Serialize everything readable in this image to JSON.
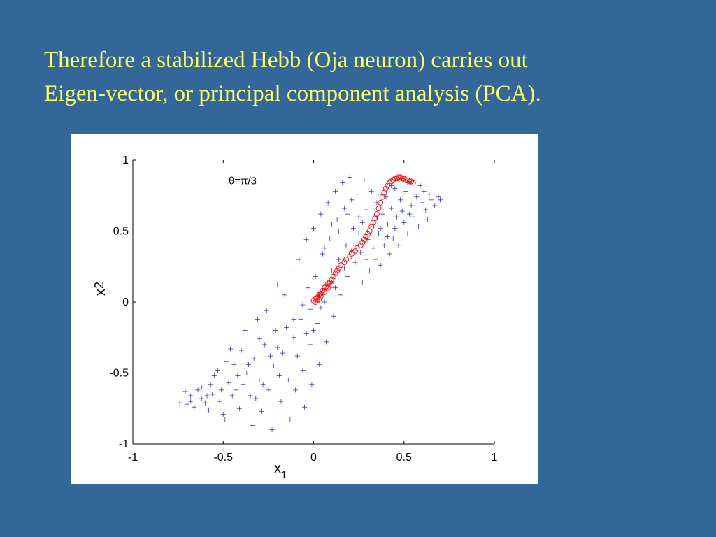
{
  "slide": {
    "title_line1": "Therefore a stabilized Hebb (Oja neuron) carries out",
    "title_line2": "Eigen-vector, or principal component analysis (PCA).",
    "title_color": "#ffff66",
    "background_color": "#336699"
  },
  "chart_data": {
    "type": "scatter",
    "xlabel_main": "x",
    "xlabel_sub": "1",
    "ylabel_main": "x",
    "ylabel_sub": "2",
    "xlim": [
      -1,
      1
    ],
    "ylim": [
      -1,
      1
    ],
    "xticks": [
      -1,
      -0.5,
      0,
      0.5,
      1
    ],
    "yticks": [
      -1,
      -0.5,
      0,
      0.5,
      1
    ],
    "xtick_labels": [
      "-1",
      "-0.5",
      "0",
      "0.5",
      "1"
    ],
    "ytick_labels": [
      "-1",
      "-0.5",
      "0",
      "0.5",
      "1"
    ],
    "annotation": "θ=π/3",
    "annotation_at": [
      -0.47,
      0.83
    ],
    "grid": false,
    "series": [
      {
        "marker": "plus",
        "color": "#3333cc",
        "points": [
          [
            -0.74,
            -0.71
          ],
          [
            -0.7,
            -0.72
          ],
          [
            -0.68,
            -0.7
          ],
          [
            -0.66,
            -0.74
          ],
          [
            -0.64,
            -0.62
          ],
          [
            -0.62,
            -0.6
          ],
          [
            -0.6,
            -0.71
          ],
          [
            -0.58,
            -0.76
          ],
          [
            -0.56,
            -0.65
          ],
          [
            -0.55,
            -0.52
          ],
          [
            -0.53,
            -0.48
          ],
          [
            -0.52,
            -0.7
          ],
          [
            -0.5,
            -0.79
          ],
          [
            -0.49,
            -0.83
          ],
          [
            -0.47,
            -0.57
          ],
          [
            -0.46,
            -0.33
          ],
          [
            -0.44,
            -0.44
          ],
          [
            -0.43,
            -0.62
          ],
          [
            -0.41,
            -0.75
          ],
          [
            -0.4,
            -0.34
          ],
          [
            -0.38,
            -0.2
          ],
          [
            -0.37,
            -0.5
          ],
          [
            -0.35,
            -0.66
          ],
          [
            -0.34,
            -0.87
          ],
          [
            -0.33,
            -0.4
          ],
          [
            -0.31,
            -0.12
          ],
          [
            -0.3,
            -0.55
          ],
          [
            -0.29,
            -0.77
          ],
          [
            -0.27,
            -0.3
          ],
          [
            -0.26,
            -0.06
          ],
          [
            -0.25,
            -0.62
          ],
          [
            -0.23,
            -0.9
          ],
          [
            -0.22,
            -0.45
          ],
          [
            -0.21,
            -0.2
          ],
          [
            -0.2,
            0.12
          ],
          [
            -0.18,
            -0.7
          ],
          [
            -0.17,
            -0.36
          ],
          [
            -0.16,
            0.05
          ],
          [
            -0.14,
            -0.55
          ],
          [
            -0.13,
            -0.83
          ],
          [
            -0.12,
            0.22
          ],
          [
            -0.11,
            -0.25
          ],
          [
            -0.1,
            -0.62
          ],
          [
            -0.08,
            0.3
          ],
          [
            -0.07,
            -0.12
          ],
          [
            -0.06,
            -0.48
          ],
          [
            -0.05,
            -0.74
          ],
          [
            -0.04,
            0.44
          ],
          [
            -0.03,
            0.1
          ],
          [
            -0.02,
            -0.3
          ],
          [
            -0.01,
            -0.58
          ],
          [
            0.0,
            0.52
          ],
          [
            0.01,
            0.18
          ],
          [
            0.02,
            -0.15
          ],
          [
            0.03,
            -0.44
          ],
          [
            0.04,
            0.62
          ],
          [
            0.05,
            0.34
          ],
          [
            0.06,
            0.0
          ],
          [
            0.07,
            -0.28
          ],
          [
            0.08,
            0.7
          ],
          [
            0.09,
            0.45
          ],
          [
            0.1,
            0.22
          ],
          [
            0.11,
            -0.1
          ],
          [
            0.12,
            0.78
          ],
          [
            0.13,
            0.58
          ],
          [
            0.14,
            0.3
          ],
          [
            0.15,
            0.05
          ],
          [
            0.16,
            0.84
          ],
          [
            0.17,
            0.66
          ],
          [
            0.18,
            0.4
          ],
          [
            0.19,
            0.18
          ],
          [
            0.2,
            0.88
          ],
          [
            0.21,
            0.72
          ],
          [
            0.22,
            0.52
          ],
          [
            0.23,
            0.28
          ],
          [
            0.24,
            0.76
          ],
          [
            0.25,
            0.6
          ],
          [
            0.26,
            0.35
          ],
          [
            0.27,
            0.14
          ],
          [
            0.28,
            0.86
          ],
          [
            0.29,
            0.65
          ],
          [
            0.3,
            0.44
          ],
          [
            0.31,
            0.22
          ],
          [
            0.32,
            0.78
          ],
          [
            0.33,
            0.55
          ],
          [
            0.34,
            0.3
          ],
          [
            0.35,
            0.7
          ],
          [
            0.36,
            0.48
          ],
          [
            0.37,
            0.26
          ],
          [
            0.38,
            0.62
          ],
          [
            0.39,
            0.4
          ],
          [
            0.4,
            0.74
          ],
          [
            0.41,
            0.55
          ],
          [
            0.42,
            0.34
          ],
          [
            0.43,
            0.66
          ],
          [
            0.44,
            0.45
          ],
          [
            0.45,
            0.8
          ],
          [
            0.46,
            0.6
          ],
          [
            0.47,
            0.4
          ],
          [
            0.48,
            0.72
          ],
          [
            0.5,
            0.56
          ],
          [
            0.51,
            0.78
          ],
          [
            0.52,
            0.48
          ],
          [
            0.54,
            0.68
          ],
          [
            0.55,
            0.6
          ],
          [
            0.57,
            0.74
          ],
          [
            0.58,
            0.53
          ],
          [
            0.6,
            0.7
          ],
          [
            0.62,
            0.65
          ],
          [
            0.63,
            0.58
          ],
          [
            0.65,
            0.72
          ],
          [
            0.67,
            0.68
          ],
          [
            0.69,
            0.74
          ],
          [
            0.7,
            0.72
          ],
          [
            -0.68,
            -0.66
          ],
          [
            -0.62,
            -0.68
          ],
          [
            -0.57,
            -0.58
          ],
          [
            -0.51,
            -0.62
          ],
          [
            -0.45,
            -0.66
          ],
          [
            -0.42,
            -0.52
          ],
          [
            -0.36,
            -0.44
          ],
          [
            -0.32,
            -0.68
          ],
          [
            -0.28,
            -0.58
          ],
          [
            -0.24,
            -0.38
          ],
          [
            -0.19,
            -0.52
          ],
          [
            -0.15,
            -0.18
          ],
          [
            -0.09,
            -0.38
          ],
          [
            -0.06,
            -0.02
          ],
          [
            -0.02,
            -0.05
          ],
          [
            0.0,
            -0.2
          ],
          [
            0.03,
            0.05
          ],
          [
            0.06,
            0.38
          ],
          [
            0.1,
            0.55
          ],
          [
            0.14,
            0.5
          ],
          [
            0.17,
            0.24
          ],
          [
            0.21,
            0.36
          ],
          [
            0.25,
            0.48
          ],
          [
            0.29,
            0.3
          ],
          [
            0.33,
            0.38
          ],
          [
            0.37,
            0.52
          ],
          [
            0.41,
            0.46
          ],
          [
            0.45,
            0.52
          ],
          [
            0.49,
            0.64
          ],
          [
            0.53,
            0.62
          ],
          [
            0.56,
            0.76
          ],
          [
            0.61,
            0.78
          ],
          [
            0.64,
            0.76
          ],
          [
            -0.71,
            -0.63
          ],
          [
            -0.59,
            -0.66
          ],
          [
            -0.48,
            -0.42
          ],
          [
            -0.39,
            -0.58
          ],
          [
            -0.3,
            -0.26
          ],
          [
            -0.2,
            -0.32
          ],
          [
            -0.11,
            -0.12
          ],
          [
            -0.04,
            -0.22
          ],
          [
            0.04,
            -0.04
          ],
          [
            0.12,
            0.1
          ],
          [
            0.19,
            0.62
          ],
          [
            0.27,
            0.56
          ],
          [
            0.35,
            0.6
          ],
          [
            0.43,
            0.82
          ],
          [
            0.52,
            0.84
          ],
          [
            0.59,
            0.82
          ]
        ]
      },
      {
        "marker": "circle",
        "color": "#ff0000",
        "points": [
          [
            0.0,
            0.01
          ],
          [
            0.01,
            0.02
          ],
          [
            0.02,
            0.03
          ],
          [
            0.03,
            0.05
          ],
          [
            0.04,
            0.06
          ],
          [
            0.05,
            0.08
          ],
          [
            0.06,
            0.1
          ],
          [
            0.07,
            0.11
          ],
          [
            0.08,
            0.13
          ],
          [
            0.09,
            0.14
          ],
          [
            0.1,
            0.16
          ],
          [
            0.11,
            0.18
          ],
          [
            0.12,
            0.2
          ],
          [
            0.13,
            0.22
          ],
          [
            0.14,
            0.24
          ],
          [
            0.15,
            0.26
          ],
          [
            0.17,
            0.28
          ],
          [
            0.18,
            0.3
          ],
          [
            0.2,
            0.32
          ],
          [
            0.21,
            0.34
          ],
          [
            0.23,
            0.36
          ],
          [
            0.24,
            0.38
          ],
          [
            0.26,
            0.4
          ],
          [
            0.27,
            0.42
          ],
          [
            0.28,
            0.44
          ],
          [
            0.29,
            0.46
          ],
          [
            0.3,
            0.48
          ],
          [
            0.31,
            0.5
          ],
          [
            0.32,
            0.53
          ],
          [
            0.33,
            0.56
          ],
          [
            0.34,
            0.59
          ],
          [
            0.35,
            0.62
          ],
          [
            0.36,
            0.66
          ],
          [
            0.37,
            0.7
          ],
          [
            0.38,
            0.74
          ],
          [
            0.39,
            0.77
          ],
          [
            0.4,
            0.8
          ],
          [
            0.41,
            0.82
          ],
          [
            0.42,
            0.84
          ],
          [
            0.43,
            0.85
          ],
          [
            0.44,
            0.86
          ],
          [
            0.45,
            0.87
          ],
          [
            0.46,
            0.87
          ],
          [
            0.47,
            0.88
          ],
          [
            0.48,
            0.88
          ],
          [
            0.49,
            0.87
          ],
          [
            0.5,
            0.87
          ],
          [
            0.51,
            0.86
          ],
          [
            0.52,
            0.86
          ],
          [
            0.53,
            0.85
          ],
          [
            0.54,
            0.85
          ],
          [
            0.55,
            0.84
          ],
          [
            0.01,
            0.0
          ],
          [
            0.02,
            0.01
          ],
          [
            0.03,
            0.02
          ],
          [
            0.04,
            0.04
          ],
          [
            0.06,
            0.07
          ],
          [
            0.08,
            0.1
          ],
          [
            0.1,
            0.12
          ]
        ]
      }
    ]
  }
}
